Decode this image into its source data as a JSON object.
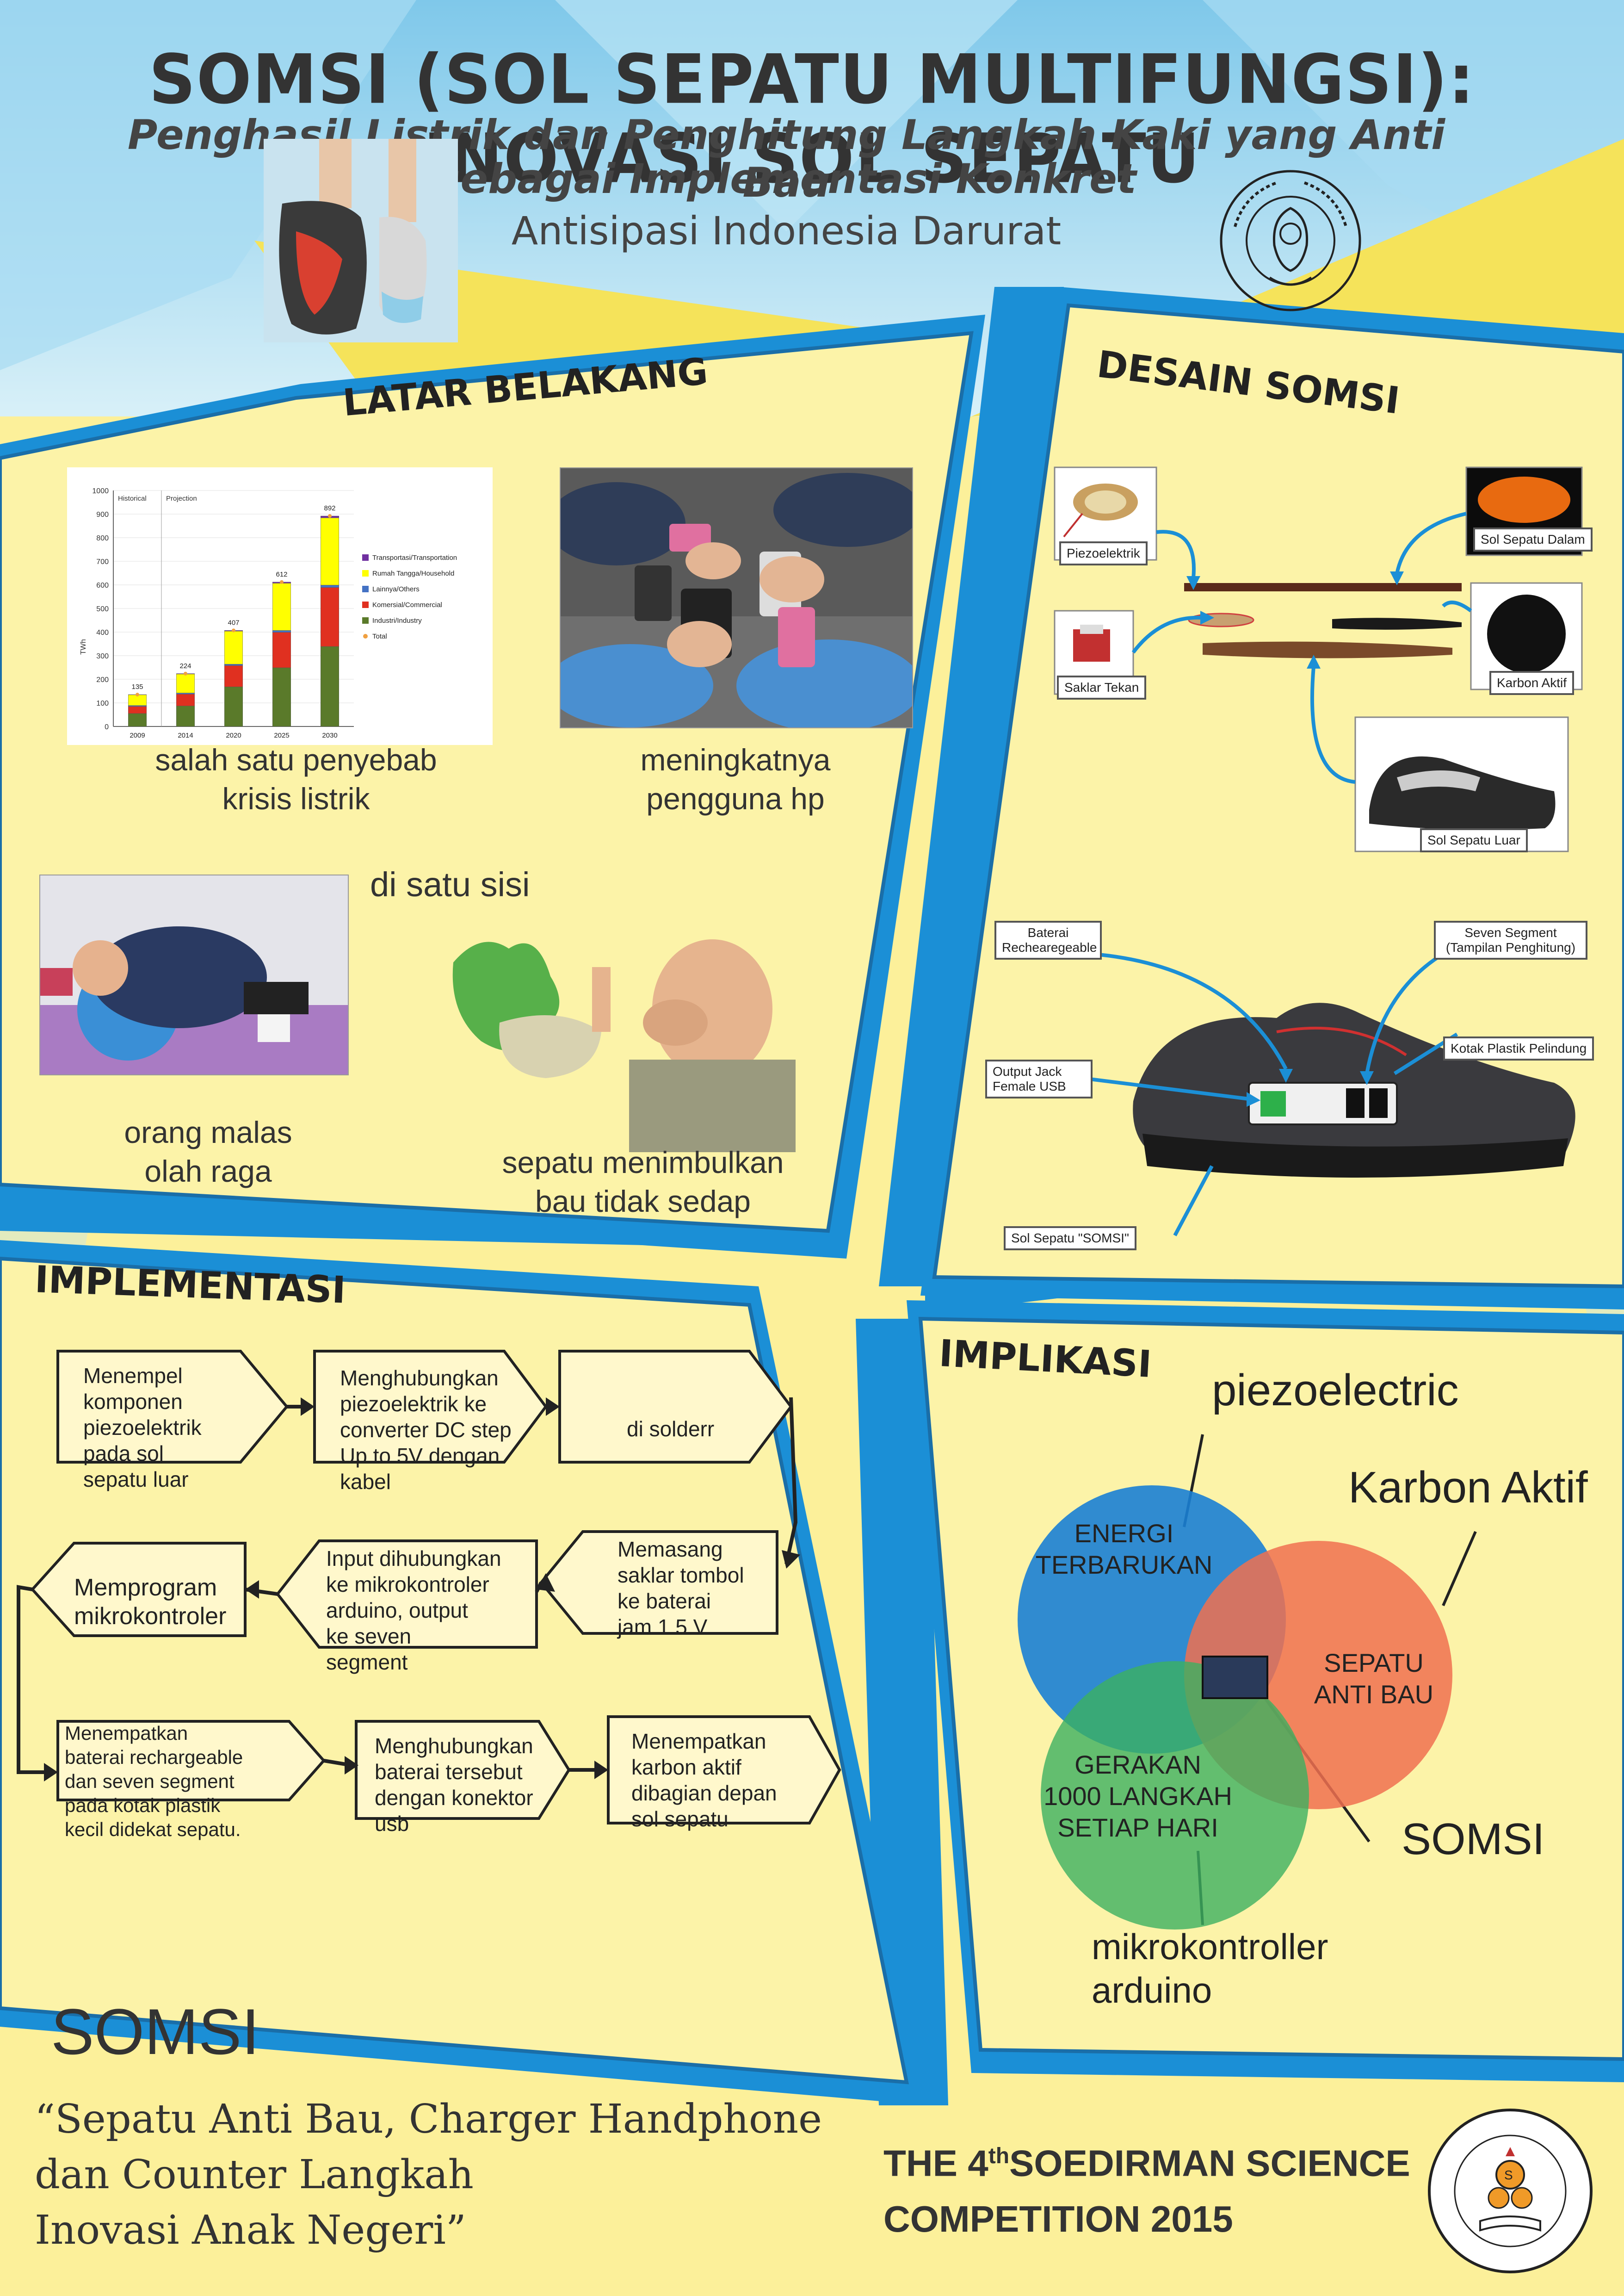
{
  "title": "SOMSI (SOL SEPATU MULTIFUNGSI): INOVASI SOL SEPATU",
  "subtitle_lines": [
    "Penghasil Listrik dan Penghitung Langkah Kaki yang Anti Bau",
    "sebagai Implementasi Konkret",
    "Antisipasi Indonesia Darurat"
  ],
  "sections": {
    "latar": "LATAR BELAKANG",
    "desain": "DESAIN SOMSI",
    "implementasi": "IMPLEMENTASI",
    "implikasi": "IMPLIKASI"
  },
  "latar": {
    "chart_caption": [
      "salah satu penyebab",
      "krisis listrik"
    ],
    "hp_caption": [
      "meningkatnya",
      "pengguna hp"
    ],
    "lazy_caption": [
      "orang malas",
      "olah raga"
    ],
    "side_caption": "di satu sisi",
    "smell_caption": [
      "sepatu menimbulkan",
      "bau tidak sedap"
    ]
  },
  "chart_data": {
    "type": "bar",
    "stacked": true,
    "categories": [
      "2009",
      "2014",
      "2020",
      "2025",
      "2030"
    ],
    "totals": [
      135,
      224,
      407,
      612,
      892
    ],
    "ylabel": "TWh",
    "ylim": [
      0,
      1000
    ],
    "yticks": [
      0,
      100,
      200,
      300,
      400,
      500,
      600,
      700,
      800,
      900,
      1000
    ],
    "period_labels": [
      "Historical",
      "Projection"
    ],
    "series": [
      {
        "name": "Transportasi/Transportation",
        "color": "#7030a0",
        "values": [
          1,
          2,
          3,
          5,
          8
        ]
      },
      {
        "name": "Rumah Tangga/Household",
        "color": "#ffff00",
        "values": [
          45,
          80,
          140,
          200,
          285
        ]
      },
      {
        "name": "Lainnya/Others",
        "color": "#4472c4",
        "values": [
          4,
          5,
          6,
          8,
          10
        ]
      },
      {
        "name": "Komersial/Commercial",
        "color": "#e03020",
        "values": [
          30,
          50,
          90,
          150,
          250
        ]
      },
      {
        "name": "Industri/Industry",
        "color": "#5a7a2a",
        "values": [
          55,
          87,
          168,
          249,
          339
        ]
      }
    ],
    "total_series": {
      "name": "Total",
      "color": "#f0a040"
    }
  },
  "desain": {
    "labels": [
      "Piezoelektrik",
      "Sol Sepatu Dalam",
      "Saklar Tekan",
      "Karbon Aktif",
      "Sol Sepatu Luar"
    ],
    "shoe_labels": {
      "baterai": [
        "Baterai",
        "Rechearegeable"
      ],
      "seven": [
        "Seven Segment",
        "(Tampilan Penghitung)"
      ],
      "kotak": "Kotak Plastik Pelindung",
      "output": [
        "Output Jack",
        "Female USB"
      ],
      "sol": "Sol Sepatu \"SOMSI\""
    }
  },
  "flow": [
    [
      "Menempel",
      "komponen",
      "piezoelektrik",
      "pada sol",
      "sepatu luar"
    ],
    [
      "Menghubungkan",
      "piezoelektrik ke",
      "converter DC step",
      "Up to 5V dengan",
      "kabel"
    ],
    [
      "di solderr"
    ],
    [
      "Memasang",
      "saklar tombol",
      "ke baterai",
      "jam 1.5 V"
    ],
    [
      "Input dihubungkan",
      "ke mikrokontroler",
      "arduino, output",
      "ke seven",
      "segment"
    ],
    [
      "Memprogram",
      "mikrokontroler"
    ],
    [
      "Menempatkan",
      "baterai rechargeable",
      "dan seven segment",
      "pada kotak plastik",
      "kecil didekat sepatu."
    ],
    [
      "Menghubungkan",
      "baterai tersebut",
      "dengan konektor",
      "usb"
    ],
    [
      "Menempatkan",
      "karbon aktif",
      "dibagian depan",
      "sol sepatu"
    ]
  ],
  "venn": {
    "blue": [
      "ENERGI",
      "TERBARUKAN"
    ],
    "red": [
      "SEPATU",
      "ANTI BAU"
    ],
    "green": [
      "GERAKAN",
      "1000 LANGKAH",
      "SETIAP HARI"
    ],
    "label_piezo": "piezoelectric",
    "label_karbon": "Karbon Aktif",
    "label_somsi": "SOMSI",
    "label_mikro": [
      "mikrokontroller",
      "arduino"
    ],
    "colors": {
      "blue": "#1a7fd4",
      "red": "#f07050",
      "green": "#3cb060",
      "center": "#2a3a5a"
    }
  },
  "footer": {
    "somsi": "SOMSI",
    "quote": [
      "“Sepatu Anti Bau, Charger Handphone",
      "dan Counter Langkah",
      "Inovasi Anak Negeri”"
    ],
    "competition_pre": "THE 4",
    "competition_sup": "th",
    "competition_post": "SOEDIRMAN SCIENCE",
    "competition_line2": "COMPETITION 2015"
  },
  "logos": {
    "unsoed": "Universitas Jenderal Soedirman seal",
    "ssc": "The Soedirman Science Competition"
  }
}
